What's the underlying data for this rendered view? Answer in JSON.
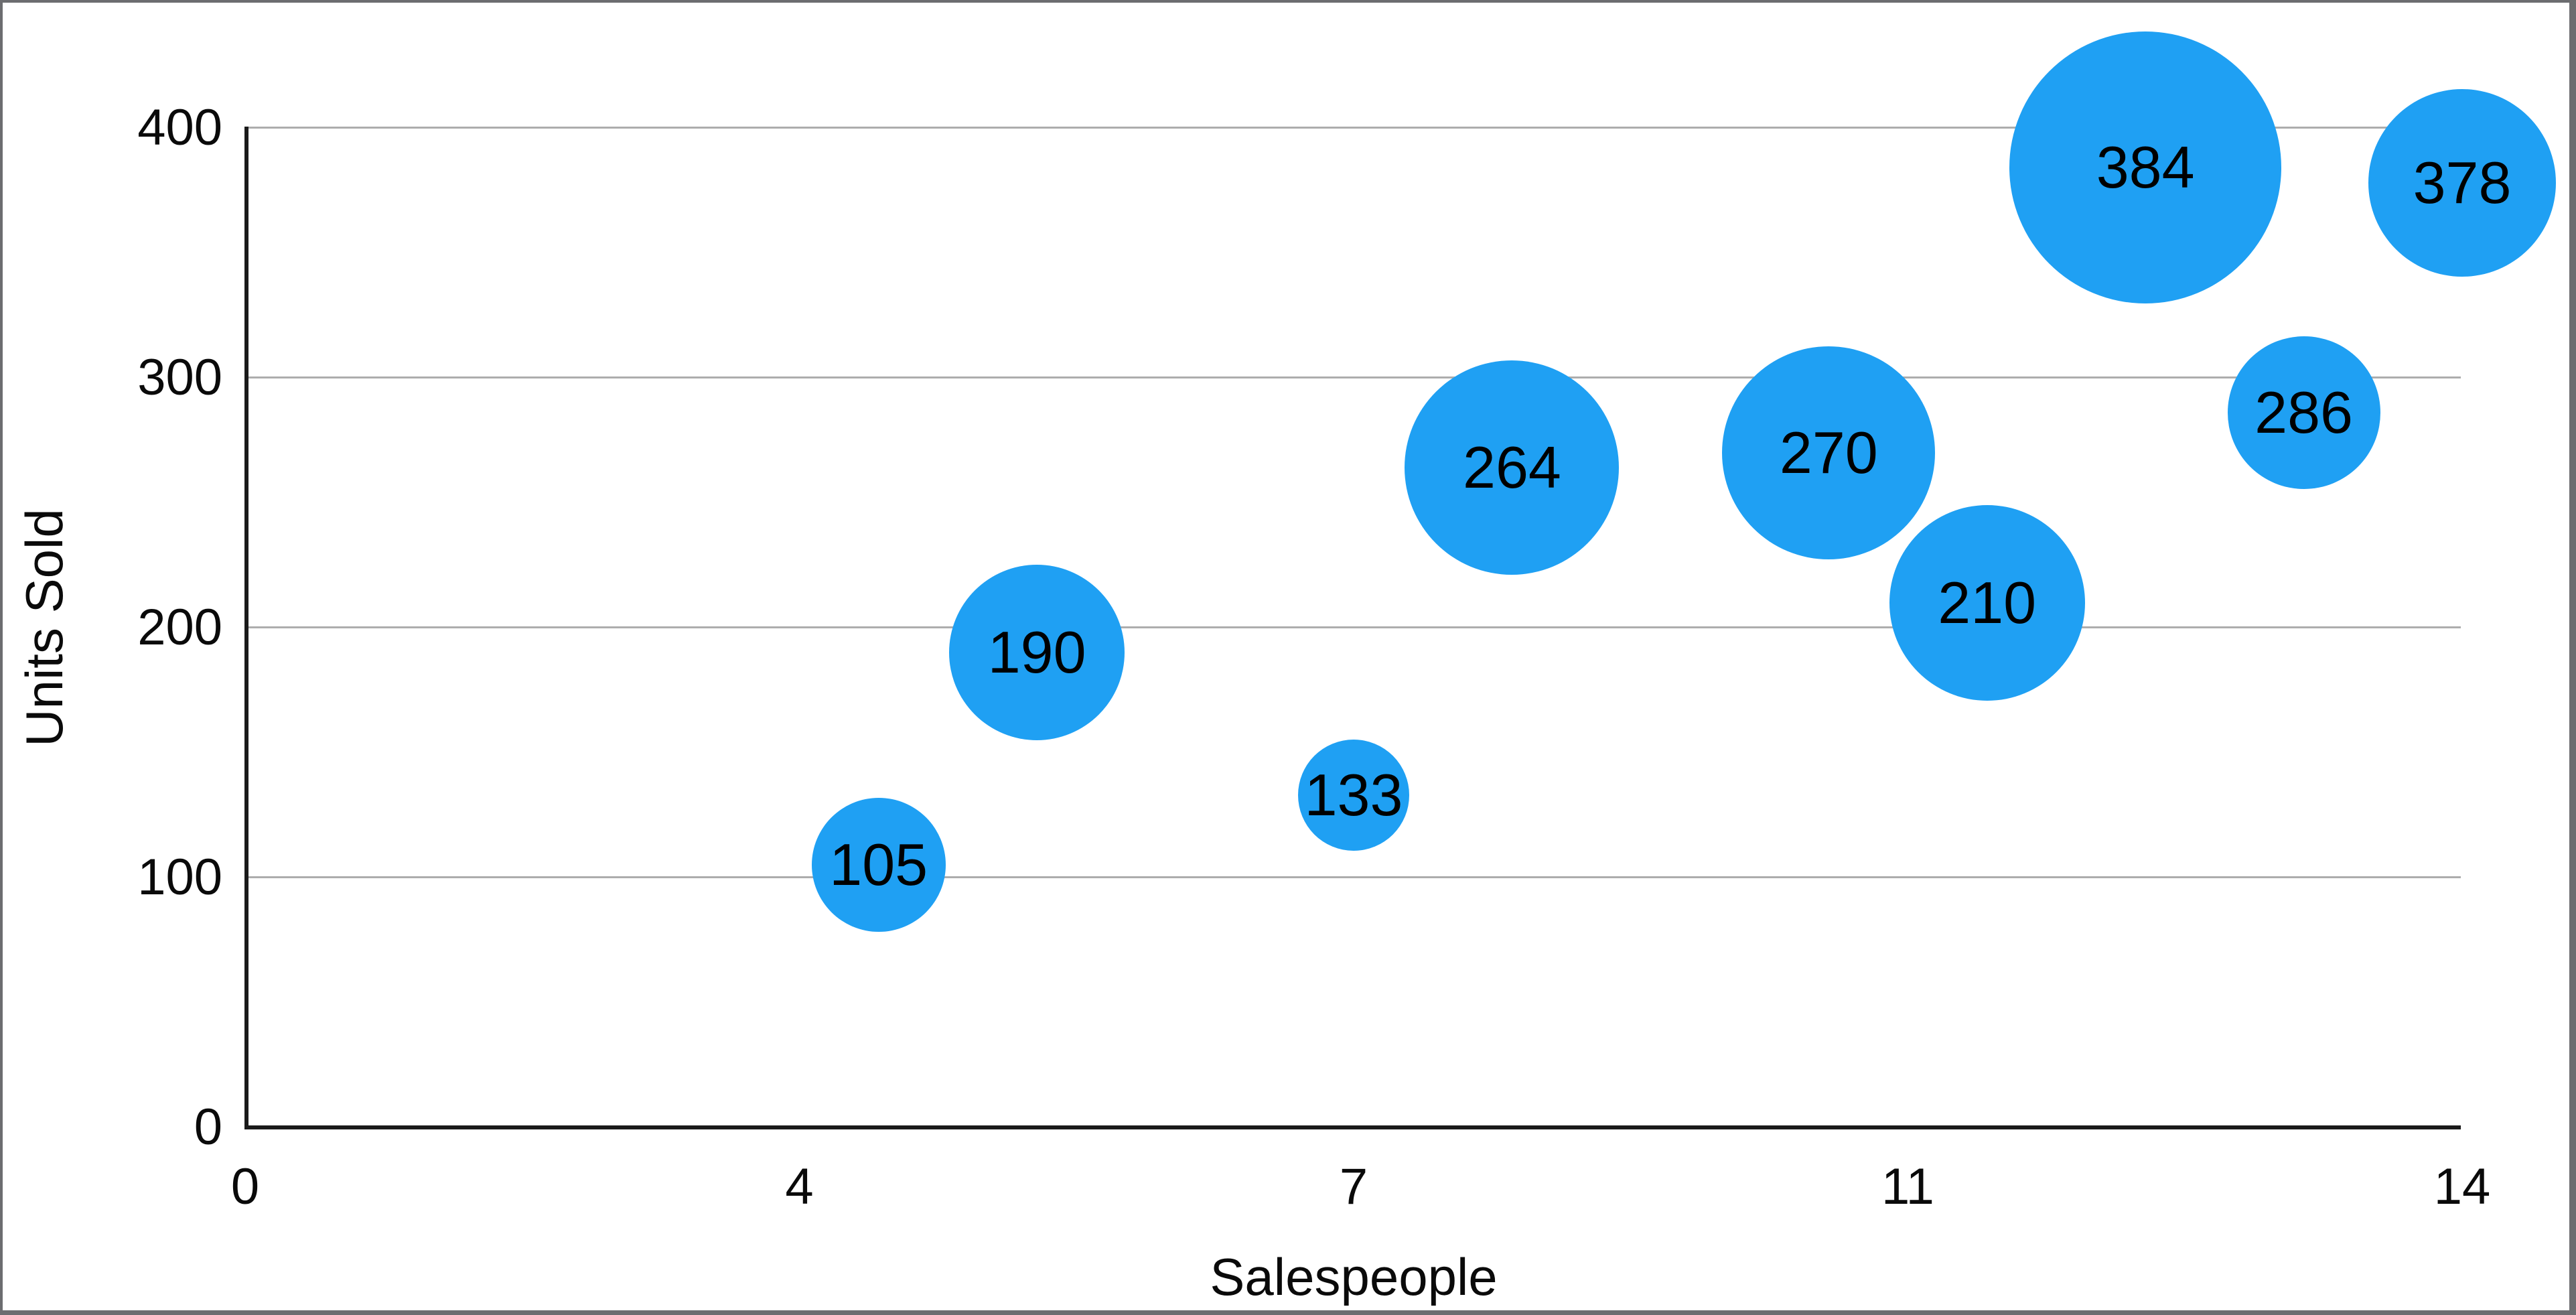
{
  "chart_data": {
    "type": "scatter",
    "subtype": "bubble",
    "title": "",
    "xlabel": "Salespeople",
    "ylabel": "Units Sold",
    "xlim": [
      0,
      14
    ],
    "ylim": [
      0,
      400
    ],
    "x_tick_labels": [
      "0",
      "4",
      "7",
      "11",
      "14"
    ],
    "y_tick_labels": [
      "0",
      "100",
      "200",
      "300",
      "400"
    ],
    "grid": "horizontal gridlines at every 100 units",
    "legend": "none",
    "series": [
      {
        "name": "Units Sold",
        "points": [
          {
            "salespeople": 4,
            "units_sold": 105,
            "label": "105",
            "bubble_radius_px": 100
          },
          {
            "salespeople": 5,
            "units_sold": 190,
            "label": "190",
            "bubble_radius_px": 131
          },
          {
            "salespeople": 7,
            "units_sold": 133,
            "label": "133",
            "bubble_radius_px": 83
          },
          {
            "salespeople": 8,
            "units_sold": 264,
            "label": "264",
            "bubble_radius_px": 160
          },
          {
            "salespeople": 10,
            "units_sold": 270,
            "label": "270",
            "bubble_radius_px": 159
          },
          {
            "salespeople": 11,
            "units_sold": 210,
            "label": "210",
            "bubble_radius_px": 146
          },
          {
            "salespeople": 12,
            "units_sold": 384,
            "label": "384",
            "bubble_radius_px": 203
          },
          {
            "salespeople": 13,
            "units_sold": 286,
            "label": "286",
            "bubble_radius_px": 114
          },
          {
            "salespeople": 14,
            "units_sold": 378,
            "label": "378",
            "bubble_radius_px": 140
          }
        ]
      }
    ]
  },
  "colors": {
    "background": "#FFFFFF",
    "bubble_fill": "#1FA0F3",
    "bubble_label": "#000000",
    "gridline": "#ADADAD",
    "axis_line": "#1A1A1A",
    "tick_text": "#0A0A0A",
    "frame_border": "#6C6D70"
  }
}
